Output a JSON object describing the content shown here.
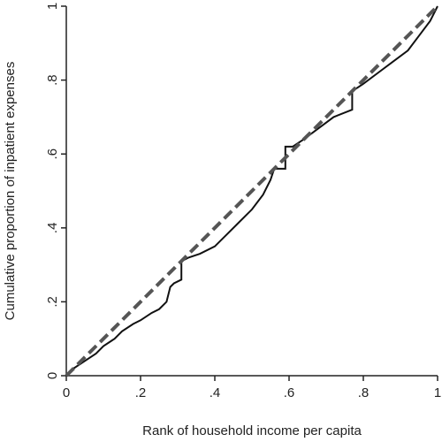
{
  "chart_data": {
    "type": "line",
    "xlabel": "Rank of household income per capita",
    "ylabel": "Cumulative proportion of inpatient expenses",
    "xlim": [
      0,
      1
    ],
    "ylim": [
      0,
      1
    ],
    "xticks": [
      0,
      {
        "value": 0.2,
        "label": ".2"
      },
      {
        "value": 0.4,
        "label": ".4"
      },
      {
        "value": 0.6,
        "label": ".6"
      },
      {
        "value": 0.8,
        "label": ".8"
      },
      1
    ],
    "yticks": [
      0,
      {
        "value": 0.2,
        "label": ".2"
      },
      {
        "value": 0.4,
        "label": ".4"
      },
      {
        "value": 0.6,
        "label": ".6"
      },
      {
        "value": 0.8,
        "label": ".8"
      },
      1
    ],
    "series": [
      {
        "color": "#111111",
        "dash": false,
        "x": [
          0,
          0.02,
          0.05,
          0.08,
          0.1,
          0.13,
          0.15,
          0.18,
          0.2,
          0.23,
          0.25,
          0.27,
          0.28,
          0.29,
          0.31,
          0.31,
          0.33,
          0.36,
          0.4,
          0.43,
          0.46,
          0.5,
          0.53,
          0.55,
          0.56,
          0.59,
          0.59,
          0.61,
          0.64,
          0.68,
          0.72,
          0.77,
          0.77,
          0.8,
          0.84,
          0.88,
          0.92,
          0.95,
          0.98,
          1
        ],
        "values": [
          0,
          0.02,
          0.04,
          0.06,
          0.08,
          0.1,
          0.12,
          0.14,
          0.15,
          0.17,
          0.18,
          0.2,
          0.24,
          0.25,
          0.26,
          0.31,
          0.32,
          0.33,
          0.35,
          0.38,
          0.41,
          0.45,
          0.49,
          0.53,
          0.56,
          0.56,
          0.62,
          0.62,
          0.64,
          0.67,
          0.7,
          0.72,
          0.77,
          0.79,
          0.82,
          0.85,
          0.88,
          0.92,
          0.96,
          1
        ]
      },
      {
        "color": "#555555",
        "dash": true,
        "x": [
          0,
          1
        ],
        "values": [
          0,
          1
        ]
      }
    ]
  }
}
